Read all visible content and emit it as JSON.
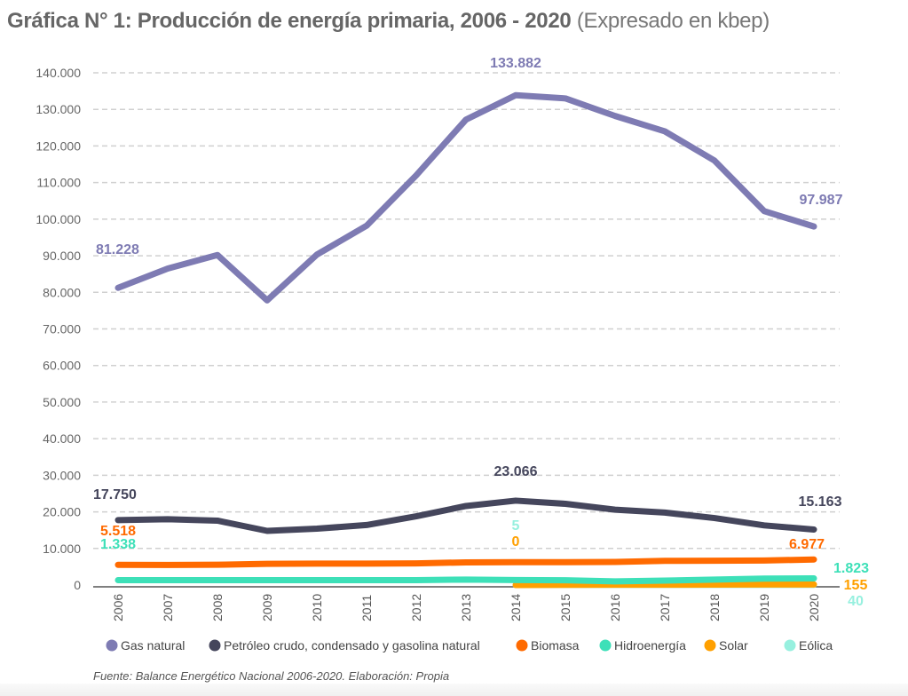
{
  "header": {
    "title_bold": "Gráfica N° 1: Producción de energía primaria, 2006 - 2020",
    "title_sub": "(Expresado en kbep)"
  },
  "footer": {
    "source": "Fuente: Balance Energético Nacional 2006-2020. Elaboración: Propia"
  },
  "chart_data": {
    "type": "line",
    "title": "Gráfica N° 1: Producción de energía primaria, 2006 - 2020 (Expresado en kbep)",
    "xlabel": "",
    "ylabel": "",
    "x": [
      "2006",
      "2007",
      "2008",
      "2009",
      "2010",
      "2011",
      "2012",
      "2013",
      "2014",
      "2015",
      "2016",
      "2017",
      "2018",
      "2019",
      "2020"
    ],
    "ylim": [
      0,
      140000
    ],
    "yticks": [
      0,
      10000,
      20000,
      30000,
      40000,
      50000,
      60000,
      70000,
      80000,
      90000,
      100000,
      110000,
      120000,
      130000,
      140000
    ],
    "ytick_labels": [
      "0",
      "10.000",
      "20.000",
      "30.000",
      "40.000",
      "50.000",
      "60.000",
      "70.000",
      "80.000",
      "90.000",
      "100.000",
      "110.000",
      "120.000",
      "130.000",
      "140.000"
    ],
    "grid": true,
    "legend_position": "bottom",
    "series": [
      {
        "name": "Gas natural",
        "color": "#7e7bb3",
        "values": [
          81228,
          86500,
          90200,
          77800,
          90300,
          98200,
          112000,
          127200,
          133882,
          133000,
          128200,
          124000,
          116000,
          102200,
          97987
        ],
        "labels": [
          {
            "index": 0,
            "text": "81.228"
          },
          {
            "index": 8,
            "text": "133.882"
          },
          {
            "index": 14,
            "text": "97.987"
          }
        ]
      },
      {
        "name": "Petróleo crudo, condensado y gasolina natural",
        "color": "#45465c",
        "values": [
          17750,
          18000,
          17600,
          14800,
          15400,
          16400,
          18800,
          21600,
          23066,
          22200,
          20600,
          19800,
          18300,
          16300,
          15163
        ],
        "labels": [
          {
            "index": 0,
            "text": "17.750"
          },
          {
            "index": 8,
            "text": "23.066"
          },
          {
            "index": 14,
            "text": "15.163"
          }
        ]
      },
      {
        "name": "Biomasa",
        "color": "#ff6a00",
        "values": [
          5518,
          5500,
          5550,
          5800,
          5850,
          5850,
          5900,
          6200,
          6250,
          6250,
          6300,
          6600,
          6650,
          6700,
          6977
        ],
        "labels": [
          {
            "index": 0,
            "text": "5.518"
          },
          {
            "index": 14,
            "text": "6.977"
          }
        ]
      },
      {
        "name": "Hidroenergía",
        "color": "#3de0b8",
        "values": [
          1338,
          1330,
          1340,
          1330,
          1340,
          1330,
          1340,
          1500,
          1350,
          1300,
          1000,
          1200,
          1500,
          1750,
          1823
        ],
        "labels": [
          {
            "index": 0,
            "text": "1.338"
          },
          {
            "index": 14,
            "text": "1.823"
          }
        ]
      },
      {
        "name": "Solar",
        "color": "#ffa000",
        "values": [
          null,
          null,
          null,
          null,
          null,
          null,
          null,
          null,
          0,
          50,
          80,
          100,
          120,
          140,
          155
        ],
        "labels": [
          {
            "index": 8,
            "text": "0"
          },
          {
            "index": 14,
            "text": "155"
          }
        ]
      },
      {
        "name": "Eólica",
        "color": "#97f0df",
        "values": [
          null,
          null,
          null,
          null,
          null,
          null,
          null,
          null,
          5,
          20,
          25,
          30,
          35,
          38,
          40
        ],
        "labels": [
          {
            "index": 8,
            "text": "5"
          },
          {
            "index": 14,
            "text": "40"
          }
        ]
      }
    ]
  }
}
